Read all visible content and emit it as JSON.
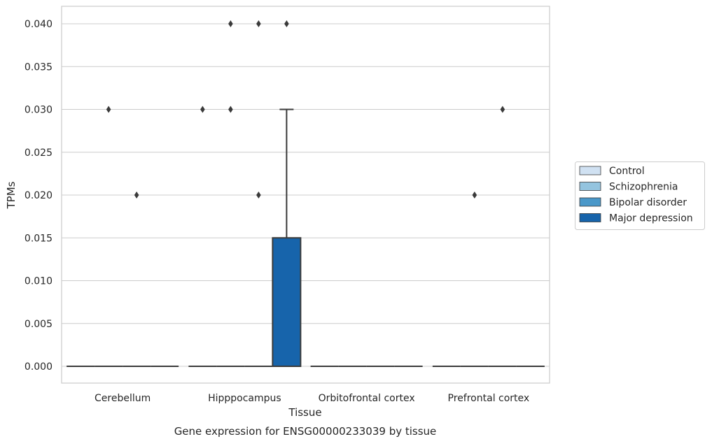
{
  "chart_data": {
    "type": "box",
    "caption": "Gene expression for ENSG00000233039 by tissue",
    "xlabel": "Tissue",
    "ylabel": "TPMs",
    "ylim": [
      -0.002,
      0.042
    ],
    "yticks": [
      "0.000",
      "0.005",
      "0.010",
      "0.015",
      "0.020",
      "0.025",
      "0.030",
      "0.035",
      "0.040"
    ],
    "ytick_values": [
      0,
      0.005,
      0.01,
      0.015,
      0.02,
      0.025,
      0.03,
      0.035,
      0.04
    ],
    "grid": true,
    "legend_position": "right",
    "categories": [
      "Cerebellum",
      "Hipppocampus",
      "Orbitofrontal cortex",
      "Prefrontal cortex"
    ],
    "series": [
      {
        "name": "Control",
        "color": "#d0e1f2",
        "boxes": [
          {
            "q1": 0,
            "median": 0,
            "q3": 0,
            "whisker_low": 0,
            "whisker_high": 0,
            "outliers": []
          },
          {
            "q1": 0,
            "median": 0,
            "q3": 0,
            "whisker_low": 0,
            "whisker_high": 0,
            "outliers": [
              0.03
            ]
          },
          {
            "q1": 0,
            "median": 0,
            "q3": 0,
            "whisker_low": 0,
            "whisker_high": 0,
            "outliers": []
          },
          {
            "q1": 0,
            "median": 0,
            "q3": 0,
            "whisker_low": 0,
            "whisker_high": 0,
            "outliers": []
          }
        ]
      },
      {
        "name": "Schizophrenia",
        "color": "#94c4df",
        "boxes": [
          {
            "q1": 0,
            "median": 0,
            "q3": 0,
            "whisker_low": 0,
            "whisker_high": 0,
            "outliers": [
              0.03
            ]
          },
          {
            "q1": 0,
            "median": 0,
            "q3": 0,
            "whisker_low": 0,
            "whisker_high": 0,
            "outliers": [
              0.04,
              0.03
            ]
          },
          {
            "q1": 0,
            "median": 0,
            "q3": 0,
            "whisker_low": 0,
            "whisker_high": 0,
            "outliers": []
          },
          {
            "q1": 0,
            "median": 0,
            "q3": 0,
            "whisker_low": 0,
            "whisker_high": 0,
            "outliers": [
              0.02
            ]
          }
        ]
      },
      {
        "name": "Bipolar disorder",
        "color": "#4a98c9",
        "boxes": [
          {
            "q1": 0,
            "median": 0,
            "q3": 0,
            "whisker_low": 0,
            "whisker_high": 0,
            "outliers": [
              0.02
            ]
          },
          {
            "q1": 0,
            "median": 0,
            "q3": 0,
            "whisker_low": 0,
            "whisker_high": 0,
            "outliers": [
              0.04,
              0.02
            ]
          },
          {
            "q1": 0,
            "median": 0,
            "q3": 0,
            "whisker_low": 0,
            "whisker_high": 0,
            "outliers": []
          },
          {
            "q1": 0,
            "median": 0,
            "q3": 0,
            "whisker_low": 0,
            "whisker_high": 0,
            "outliers": [
              0.03
            ]
          }
        ]
      },
      {
        "name": "Major depression",
        "color": "#1764ab",
        "boxes": [
          {
            "q1": 0,
            "median": 0,
            "q3": 0,
            "whisker_low": 0,
            "whisker_high": 0,
            "outliers": []
          },
          {
            "q1": 0,
            "median": 0,
            "q3": 0.015,
            "whisker_low": 0,
            "whisker_high": 0.03,
            "outliers": [
              0.04
            ]
          },
          {
            "q1": 0,
            "median": 0,
            "q3": 0,
            "whisker_low": 0,
            "whisker_high": 0,
            "outliers": []
          },
          {
            "q1": 0,
            "median": 0,
            "q3": 0,
            "whisker_low": 0,
            "whisker_high": 0,
            "outliers": []
          }
        ]
      }
    ]
  }
}
